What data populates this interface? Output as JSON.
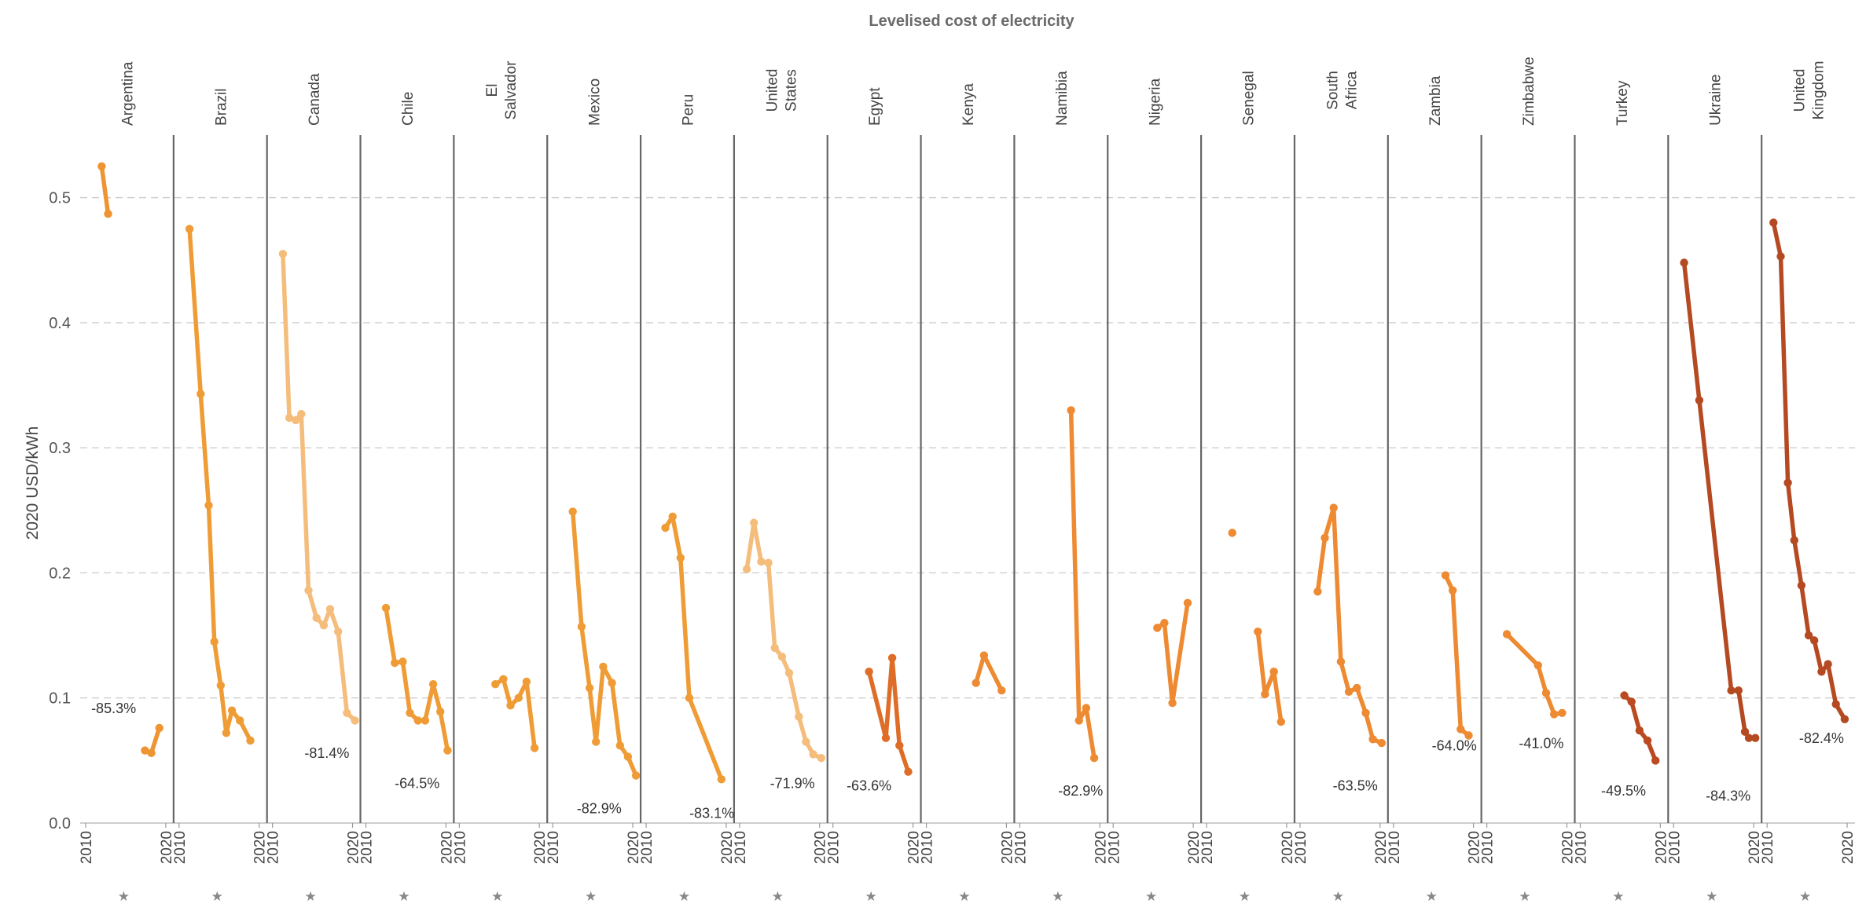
{
  "chart_data": {
    "type": "line",
    "title": "Levelised cost of electricity",
    "ylabel": "2020 USD/kWh",
    "ylim": [
      0,
      0.55
    ],
    "yticks": [
      "0.0",
      "0.1",
      "0.2",
      "0.3",
      "0.4",
      "0.5"
    ],
    "ytick_values": [
      0,
      0.1,
      0.2,
      0.3,
      0.4,
      0.5
    ],
    "xlim": [
      2010,
      2020
    ],
    "xticks": [
      "2010",
      "2020"
    ],
    "xtick_values": [
      2010,
      2020
    ],
    "grid": true,
    "panels": [
      {
        "name": "Argentina",
        "color": "#ee9432",
        "change": "-85.3%",
        "change_at": [
          2013.5,
          0.088
        ],
        "segments": [
          [
            [
              2012,
              0.525
            ],
            [
              2012.8,
              0.487
            ]
          ],
          [
            [
              2017.4,
              0.058
            ],
            [
              2018.2,
              0.056
            ],
            [
              2019.2,
              0.076
            ]
          ]
        ]
      },
      {
        "name": "Brazil",
        "color": "#ef9c36",
        "change": "",
        "segments": [
          [
            [
              2011.3,
              0.475
            ],
            [
              2012.7,
              0.343
            ],
            [
              2013.7,
              0.254
            ],
            [
              2014.4,
              0.145
            ],
            [
              2015.2,
              0.11
            ],
            [
              2015.9,
              0.072
            ],
            [
              2016.6,
              0.09
            ],
            [
              2017.6,
              0.082
            ],
            [
              2018.9,
              0.066
            ]
          ]
        ]
      },
      {
        "name": "Canada",
        "color": "#f5bd7c",
        "change": "-81.4%",
        "change_at": [
          2016.8,
          0.052
        ],
        "segments": [
          [
            [
              2011.3,
              0.455
            ],
            [
              2012.1,
              0.324
            ],
            [
              2012.9,
              0.322
            ],
            [
              2013.6,
              0.327
            ],
            [
              2014.5,
              0.186
            ],
            [
              2015.5,
              0.164
            ],
            [
              2016.4,
              0.158
            ],
            [
              2017.2,
              0.171
            ],
            [
              2018.2,
              0.153
            ],
            [
              2019.3,
              0.088
            ],
            [
              2020.3,
              0.082
            ]
          ]
        ]
      },
      {
        "name": "Chile",
        "color": "#ef9c36",
        "change": "-64.5%",
        "change_at": [
          2016.4,
          0.028
        ],
        "segments": [
          [
            [
              2012.5,
              0.172
            ],
            [
              2013.6,
              0.128
            ],
            [
              2014.6,
              0.129
            ],
            [
              2015.5,
              0.088
            ],
            [
              2016.5,
              0.082
            ],
            [
              2017.4,
              0.082
            ],
            [
              2018.4,
              0.111
            ],
            [
              2019.3,
              0.089
            ],
            [
              2020.2,
              0.058
            ]
          ]
        ]
      },
      {
        "name": "El Salvador",
        "color": "#ef9c36",
        "change": "",
        "segments": [
          [
            [
              2014.5,
              0.111
            ],
            [
              2015.5,
              0.115
            ],
            [
              2016.4,
              0.094
            ],
            [
              2017.4,
              0.1
            ],
            [
              2018.4,
              0.113
            ],
            [
              2019.4,
              0.06
            ]
          ]
        ]
      },
      {
        "name": "Mexico",
        "color": "#ef9c36",
        "change": "-82.9%",
        "change_at": [
          2015.8,
          0.008
        ],
        "segments": [
          [
            [
              2012.5,
              0.249
            ],
            [
              2013.6,
              0.157
            ],
            [
              2014.6,
              0.108
            ],
            [
              2015.4,
              0.065
            ],
            [
              2016.3,
              0.125
            ],
            [
              2017.4,
              0.112
            ],
            [
              2018.4,
              0.062
            ],
            [
              2019.4,
              0.053
            ],
            [
              2020.4,
              0.038
            ]
          ]
        ]
      },
      {
        "name": "Peru",
        "color": "#ef9c36",
        "change": "-83.1%",
        "change_at": [
          2018.2,
          0.004
        ],
        "segments": [
          [
            [
              2012.4,
              0.236
            ],
            [
              2013.3,
              0.245
            ],
            [
              2014.3,
              0.212
            ],
            [
              2015.4,
              0.1
            ],
            [
              2019.4,
              0.035
            ]
          ]
        ]
      },
      {
        "name": "United States",
        "color": "#f5bd7c",
        "change": "-71.9%",
        "change_at": [
          2016.6,
          0.028
        ],
        "segments": [
          [
            [
              2010.9,
              0.203
            ],
            [
              2011.8,
              0.24
            ],
            [
              2012.7,
              0.209
            ],
            [
              2013.6,
              0.208
            ],
            [
              2014.4,
              0.14
            ],
            [
              2015.3,
              0.133
            ],
            [
              2016.2,
              0.12
            ],
            [
              2017.4,
              0.085
            ],
            [
              2018.3,
              0.065
            ],
            [
              2019.2,
              0.055
            ],
            [
              2020.2,
              0.052
            ]
          ]
        ]
      },
      {
        "name": "Egypt",
        "color": "#de6d27",
        "change": "-63.6%",
        "change_at": [
          2014.5,
          0.026
        ],
        "segments": [
          [
            [
              2014.5,
              0.121
            ],
            [
              2016.6,
              0.068
            ],
            [
              2017.4,
              0.132
            ],
            [
              2018.3,
              0.062
            ],
            [
              2019.4,
              0.041
            ]
          ]
        ]
      },
      {
        "name": "Kenya",
        "color": "#ee8a32",
        "change": "",
        "segments": [
          [
            [
              2016.2,
              0.112
            ],
            [
              2017.2,
              0.134
            ],
            [
              2019.4,
              0.106
            ]
          ]
        ]
      },
      {
        "name": "Namibia",
        "color": "#ee8a32",
        "change": "-82.9%",
        "change_at": [
          2017.6,
          0.022
        ],
        "segments": [
          [
            [
              2016.4,
              0.33
            ],
            [
              2017.4,
              0.082
            ],
            [
              2018.3,
              0.092
            ],
            [
              2019.3,
              0.052
            ]
          ]
        ]
      },
      {
        "name": "Nigeria",
        "color": "#ee8a32",
        "change": "",
        "segments": [
          [
            [
              2015.5,
              0.156
            ],
            [
              2016.4,
              0.16
            ],
            [
              2017.4,
              0.096
            ],
            [
              2019.3,
              0.176
            ]
          ]
        ]
      },
      {
        "name": "Senegal",
        "color": "#ee8a32",
        "change": "",
        "segments": [
          [
            [
              2013.2,
              0.232
            ]
          ],
          [
            [
              2016.4,
              0.153
            ],
            [
              2017.3,
              0.103
            ],
            [
              2018.4,
              0.121
            ],
            [
              2019.3,
              0.081
            ]
          ]
        ]
      },
      {
        "name": "South Africa",
        "color": "#ee8a32",
        "change": "-63.5%",
        "change_at": [
          2016.9,
          0.026
        ],
        "segments": [
          [
            [
              2012.2,
              0.185
            ],
            [
              2013.1,
              0.228
            ],
            [
              2014.2,
              0.252
            ],
            [
              2015.1,
              0.129
            ],
            [
              2016.1,
              0.105
            ],
            [
              2017.1,
              0.108
            ],
            [
              2018.2,
              0.088
            ],
            [
              2019.1,
              0.067
            ],
            [
              2020.2,
              0.064
            ]
          ]
        ]
      },
      {
        "name": "Zambia",
        "color": "#ee8a32",
        "change": "-64.0%",
        "change_at": [
          2017.6,
          0.058
        ],
        "segments": [
          [
            [
              2016.5,
              0.198
            ],
            [
              2017.4,
              0.186
            ],
            [
              2018.4,
              0.075
            ],
            [
              2019.4,
              0.07
            ]
          ]
        ]
      },
      {
        "name": "Zimbabwe",
        "color": "#ee8a32",
        "change": "-41.0%",
        "change_at": [
          2016.8,
          0.06
        ],
        "segments": [
          [
            [
              2012.5,
              0.151
            ],
            [
              2016.4,
              0.126
            ],
            [
              2017.4,
              0.104
            ],
            [
              2018.4,
              0.087
            ],
            [
              2019.4,
              0.088
            ]
          ]
        ]
      },
      {
        "name": "Turkey",
        "color": "#bb4a21",
        "change": "-49.5%",
        "change_at": [
          2015.4,
          0.022
        ],
        "segments": [
          [
            [
              2015.5,
              0.102
            ],
            [
              2016.4,
              0.097
            ],
            [
              2017.4,
              0.074
            ],
            [
              2018.4,
              0.066
            ],
            [
              2019.4,
              0.05
            ]
          ]
        ]
      },
      {
        "name": "Ukraine",
        "color": "#b54a22",
        "change": "-84.3%",
        "change_at": [
          2016.8,
          0.018
        ],
        "segments": [
          [
            [
              2011.3,
              0.448
            ],
            [
              2013.2,
              0.338
            ],
            [
              2017.2,
              0.106
            ],
            [
              2018.1,
              0.106
            ],
            [
              2018.9,
              0.073
            ],
            [
              2019.4,
              0.068
            ],
            [
              2020.2,
              0.068
            ]
          ]
        ]
      },
      {
        "name": "United Kingdom",
        "color": "#b54a22",
        "change": "-82.4%",
        "change_at": [
          2016.8,
          0.064
        ],
        "segments": [
          [
            [
              2010.8,
              0.48
            ],
            [
              2011.7,
              0.453
            ],
            [
              2012.6,
              0.272
            ],
            [
              2013.4,
              0.226
            ],
            [
              2014.3,
              0.19
            ],
            [
              2015.2,
              0.15
            ],
            [
              2015.9,
              0.146
            ],
            [
              2016.8,
              0.121
            ],
            [
              2017.6,
              0.127
            ],
            [
              2018.6,
              0.095
            ],
            [
              2019.7,
              0.083
            ]
          ]
        ]
      }
    ]
  }
}
